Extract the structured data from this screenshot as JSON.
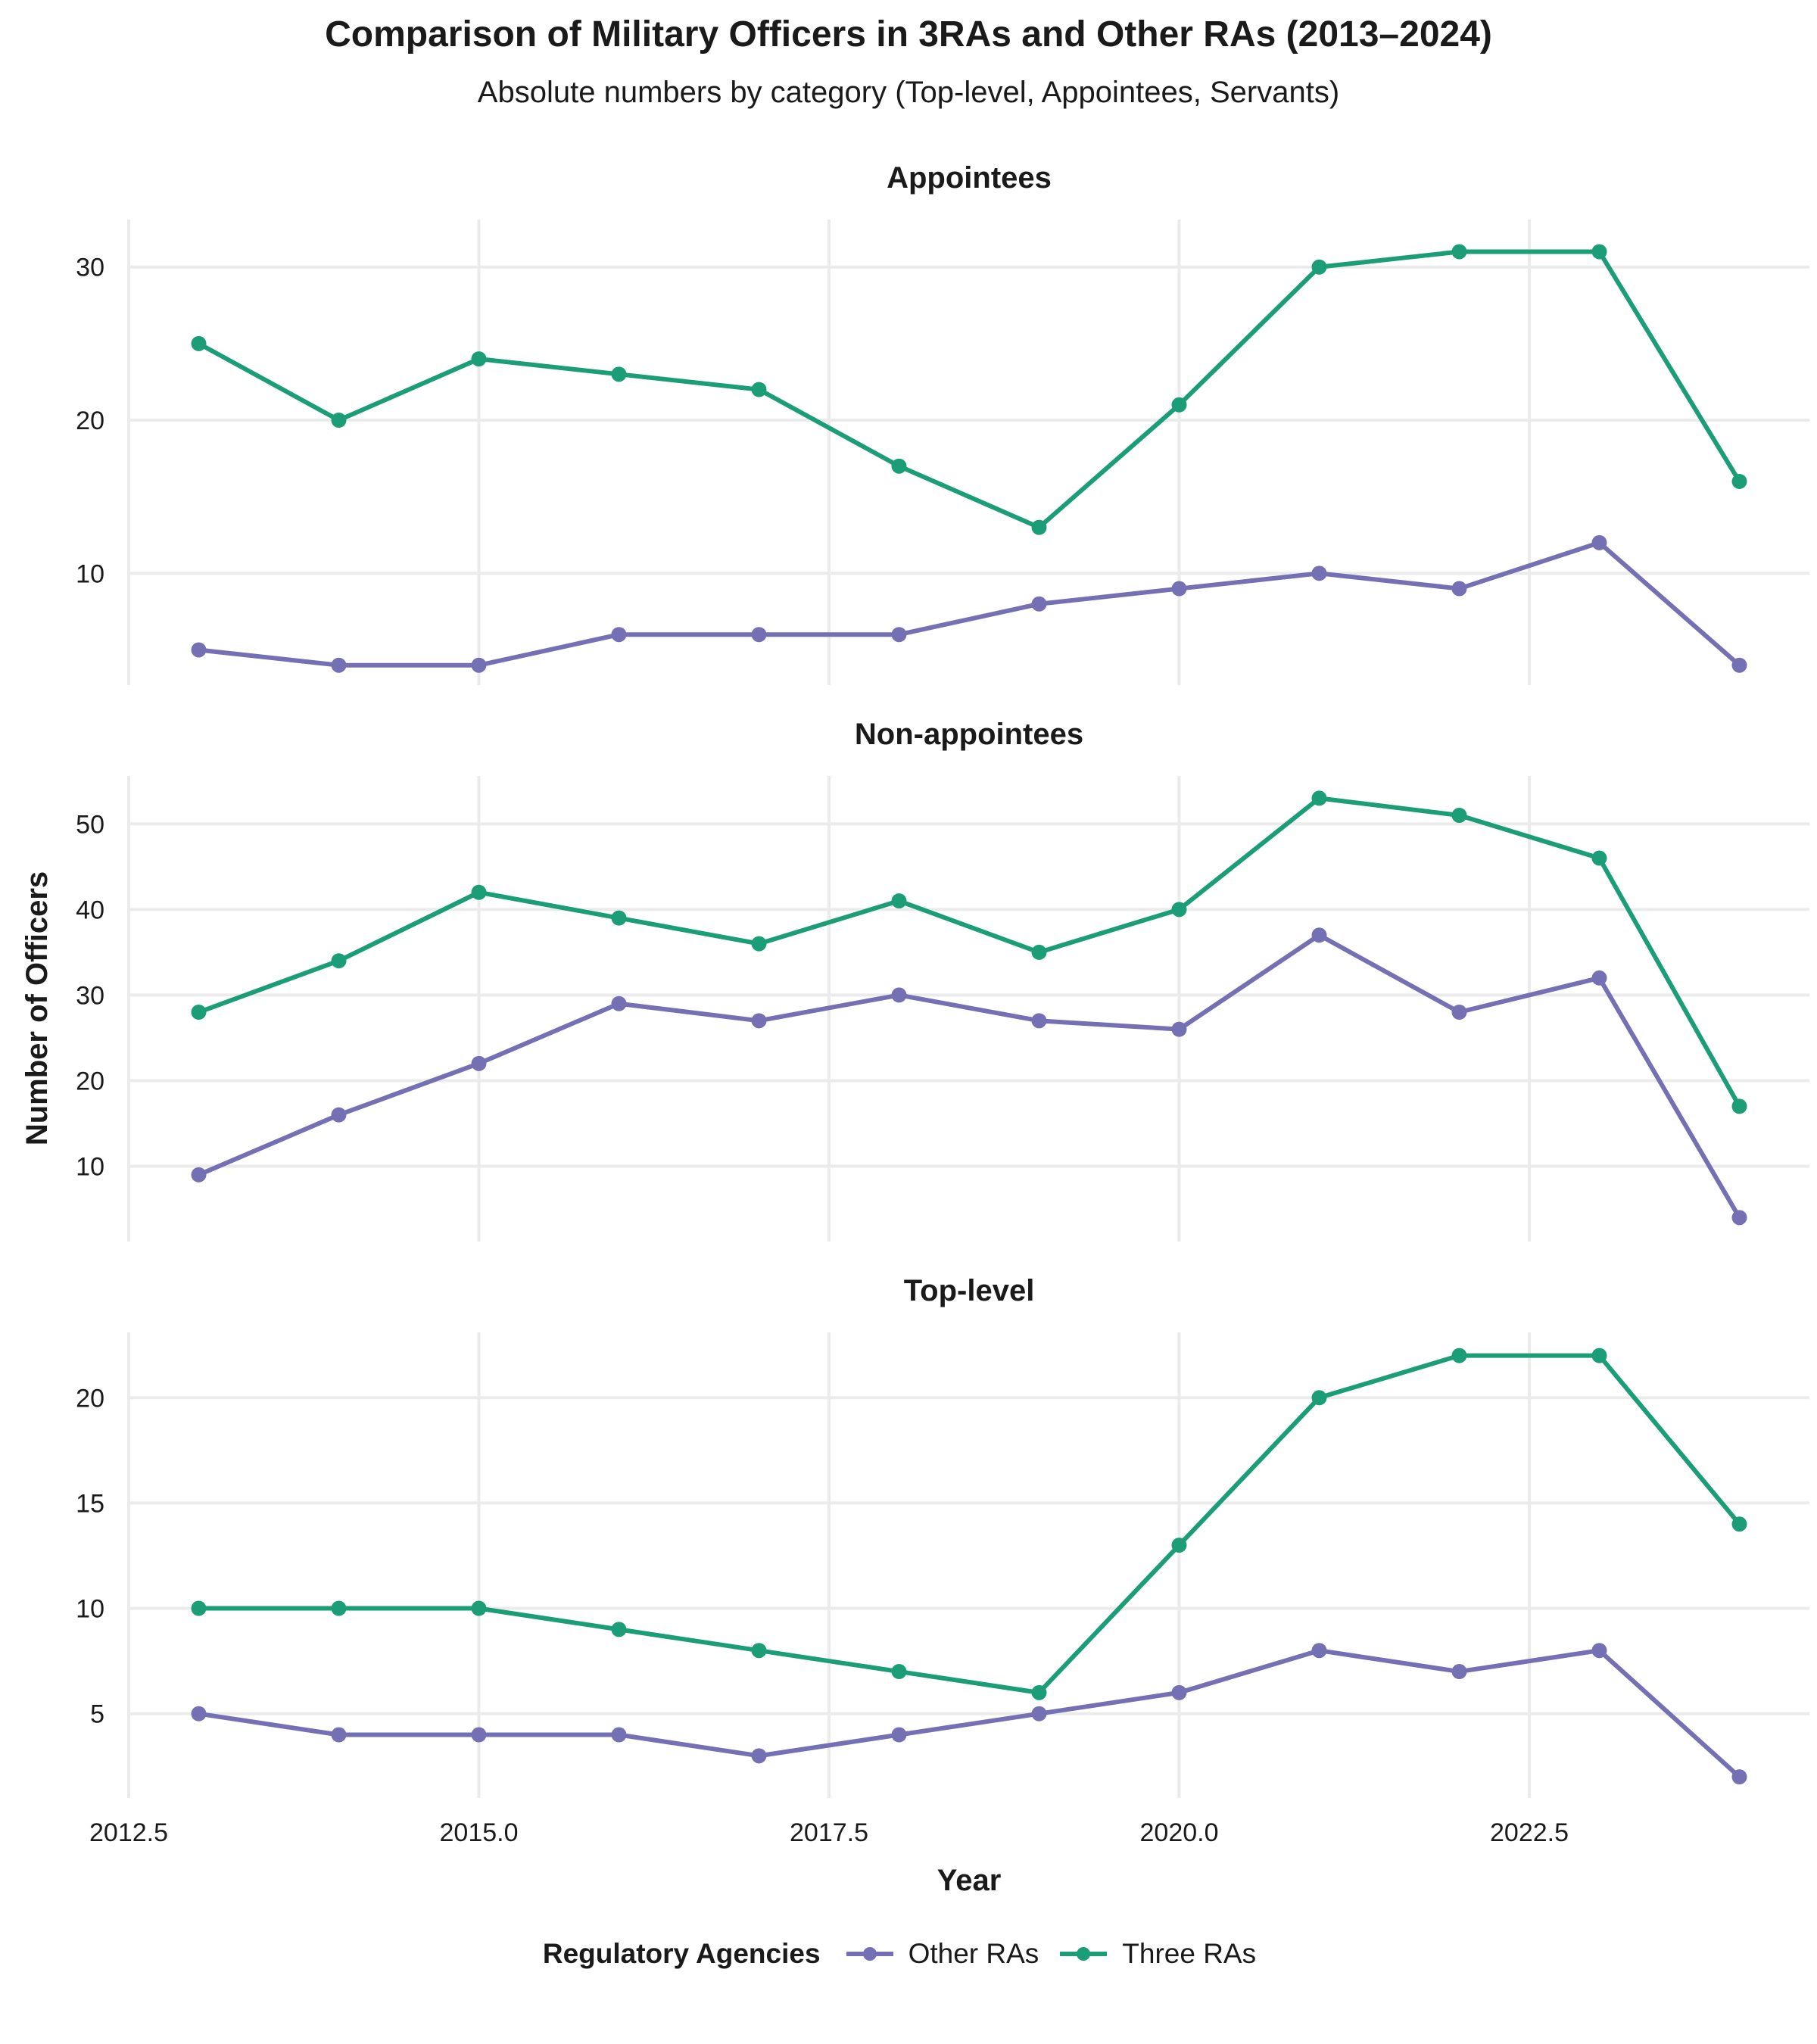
{
  "title": "Comparison of Military Officers in 3RAs and Other RAs (2013–2024)",
  "subtitle": "Absolute numbers by category (Top-level, Appointees, Servants)",
  "legend": {
    "title": "Regulatory Agencies",
    "items": [
      {
        "label": "Other RAs",
        "color": "#7570b3"
      },
      {
        "label": "Three RAs",
        "color": "#1b9e77"
      }
    ]
  },
  "chart_data": {
    "type": "line",
    "xlabel": "Year",
    "ylabel": "Number of Officers",
    "x": [
      2013,
      2014,
      2015,
      2016,
      2017,
      2018,
      2019,
      2020,
      2021,
      2022,
      2023,
      2024
    ],
    "xlim": [
      2012.5,
      2024.5
    ],
    "xticks": [
      2012.5,
      2015.0,
      2017.5,
      2020.0,
      2022.5
    ],
    "xtick_labels": [
      "2012.5",
      "2015.0",
      "2017.5",
      "2020.0",
      "2022.5"
    ],
    "grid": true,
    "legend_position": "bottom",
    "facets": [
      {
        "title": "Appointees",
        "ylim": [
          2.7,
          33.1
        ],
        "yticks": [
          10,
          20,
          30
        ],
        "series": [
          {
            "name": "Other RAs",
            "color": "#7570b3",
            "values": [
              5,
              4,
              4,
              6,
              6,
              6,
              8,
              9,
              10,
              9,
              12,
              4
            ]
          },
          {
            "name": "Three RAs",
            "color": "#1b9e77",
            "values": [
              25,
              20,
              24,
              23,
              22,
              17,
              13,
              21,
              30,
              31,
              31,
              16
            ]
          }
        ]
      },
      {
        "title": "Non-appointees",
        "ylim": [
          1.2,
          55.6
        ],
        "yticks": [
          10,
          20,
          30,
          40,
          50
        ],
        "series": [
          {
            "name": "Other RAs",
            "color": "#7570b3",
            "values": [
              9,
              16,
              22,
              29,
              27,
              30,
              27,
              26,
              37,
              28,
              32,
              4
            ]
          },
          {
            "name": "Three RAs",
            "color": "#1b9e77",
            "values": [
              28,
              34,
              42,
              39,
              36,
              41,
              35,
              40,
              53,
              51,
              46,
              17
            ]
          }
        ]
      },
      {
        "title": "Top-level",
        "ylim": [
          1.0,
          23.1
        ],
        "yticks": [
          5,
          10,
          15,
          20
        ],
        "series": [
          {
            "name": "Other RAs",
            "color": "#7570b3",
            "values": [
              5,
              4,
              4,
              4,
              3,
              4,
              5,
              6,
              8,
              7,
              8,
              2
            ]
          },
          {
            "name": "Three RAs",
            "color": "#1b9e77",
            "values": [
              10,
              10,
              10,
              9,
              8,
              7,
              6,
              13,
              20,
              22,
              22,
              14
            ]
          }
        ]
      }
    ]
  }
}
